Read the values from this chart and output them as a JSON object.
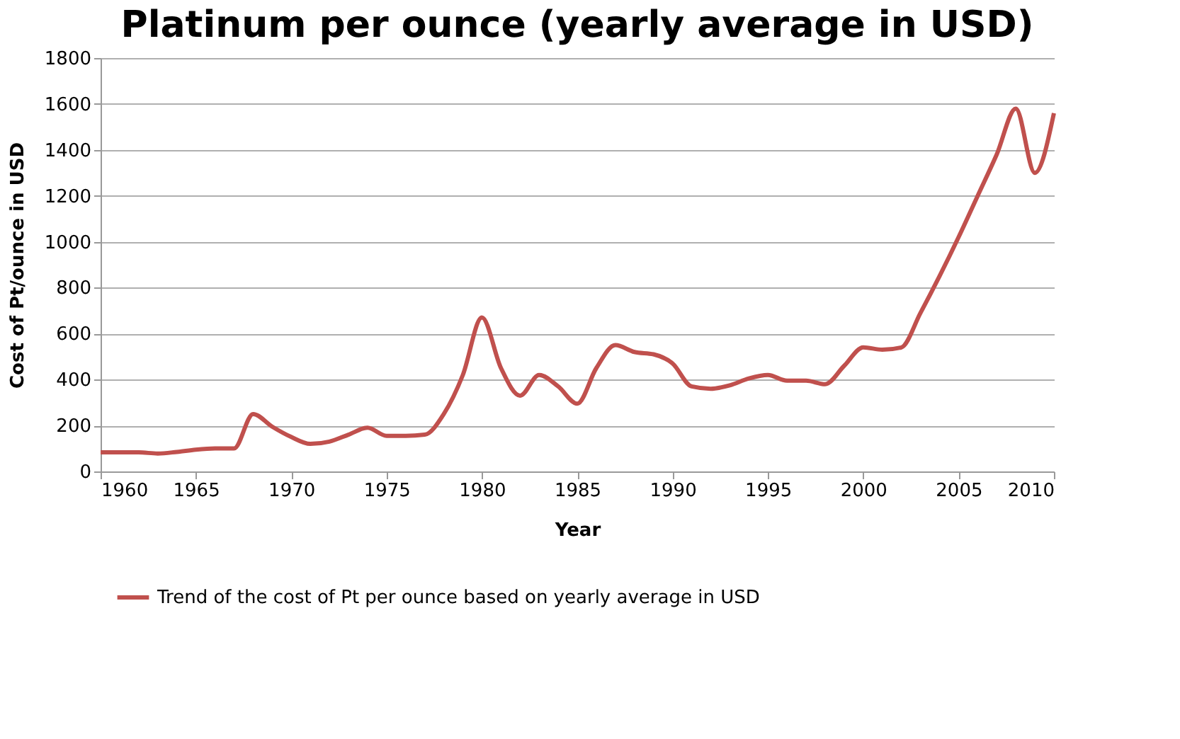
{
  "chart_data": {
    "type": "line",
    "title": "Platinum per ounce (yearly average in USD)",
    "xlabel": "Year",
    "ylabel": "Cost of Pt/ounce in USD",
    "x": [
      1960,
      1961,
      1962,
      1963,
      1964,
      1965,
      1966,
      1967,
      1968,
      1969,
      1970,
      1971,
      1972,
      1973,
      1974,
      1975,
      1976,
      1977,
      1978,
      1979,
      1980,
      1981,
      1982,
      1983,
      1984,
      1985,
      1986,
      1987,
      1988,
      1989,
      1990,
      1991,
      1992,
      1993,
      1994,
      1995,
      1996,
      1997,
      1998,
      1999,
      2000,
      2001,
      2002,
      2003,
      2004,
      2005,
      2006,
      2007,
      2008,
      2009,
      2010
    ],
    "series": [
      {
        "name": "Trend of the cost of Pt per ounce based on yearly average in USD",
        "color": "#c0504d",
        "values": [
          83,
          83,
          83,
          78,
          85,
          95,
          100,
          100,
          250,
          195,
          150,
          120,
          130,
          160,
          190,
          155,
          155,
          160,
          250,
          420,
          670,
          450,
          330,
          420,
          370,
          295,
          450,
          550,
          520,
          510,
          470,
          370,
          360,
          375,
          405,
          420,
          395,
          395,
          380,
          460,
          540,
          530,
          540,
          690,
          850,
          1020,
          1200,
          1380,
          1580,
          1300,
          1560
        ]
      }
    ],
    "xlim": [
      1960,
      2010
    ],
    "xticks": [
      1960,
      1965,
      1970,
      1975,
      1980,
      1985,
      1990,
      1995,
      2000,
      2005,
      2010
    ],
    "ylim": [
      0,
      1800
    ],
    "yticks": [
      0,
      200,
      400,
      600,
      800,
      1000,
      1200,
      1400,
      1600,
      1800
    ],
    "grid": "y",
    "legend": "bottom",
    "marker": "none",
    "line_style": "solid"
  }
}
